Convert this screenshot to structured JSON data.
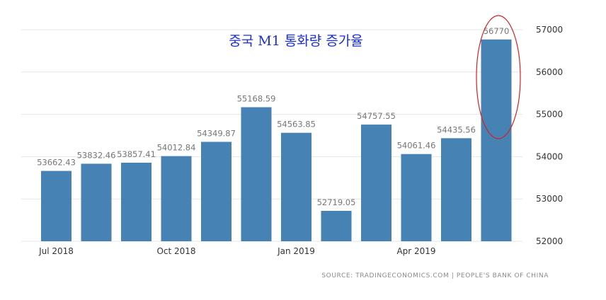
{
  "chart_data": {
    "type": "bar",
    "title": "중국 M1 통화량 증가율",
    "source": "SOURCE: TRADINGECONOMICS.COM | PEOPLE'S BANK OF CHINA",
    "categories": [
      "2018-07",
      "2018-08",
      "2018-09",
      "2018-10",
      "2018-11",
      "2018-12",
      "2019-01",
      "2019-02",
      "2019-03",
      "2019-04",
      "2019-05",
      "2019-06"
    ],
    "values": [
      53662.43,
      53832.46,
      53857.41,
      54012.84,
      54349.87,
      55168.59,
      54563.85,
      52719.05,
      54757.55,
      54061.46,
      54435.56,
      56770
    ],
    "value_labels": [
      "53662.43",
      "53832.46",
      "53857.41",
      "54012.84",
      "54349.87",
      "55168.59",
      "54563.85",
      "52719.05",
      "54757.55",
      "54061.46",
      "54435.56",
      "56770"
    ],
    "x_ticks": [
      {
        "category": "2018-07",
        "label": "Jul 2018"
      },
      {
        "category": "2018-10",
        "label": "Oct 2018"
      },
      {
        "category": "2019-01",
        "label": "Jan 2019"
      },
      {
        "category": "2019-04",
        "label": "Apr 2019"
      }
    ],
    "y_ticks": [
      52000,
      53000,
      54000,
      55000,
      56000,
      57000
    ],
    "ylim": [
      52000,
      57000
    ],
    "y_axis_side": "right",
    "grid": true,
    "bar_color": "#4682b4",
    "highlight": {
      "category": "2019-06",
      "color": "#d62020"
    },
    "xlabel": "",
    "ylabel": ""
  }
}
